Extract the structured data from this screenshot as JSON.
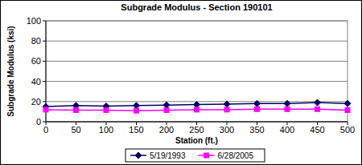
{
  "chart_data": {
    "type": "line",
    "title": "Subgrade Modulus  - Section 190101",
    "x_label": "Station (ft.)",
    "y_label": "Subgrade Modulus (ksi)",
    "x": [
      0,
      50,
      100,
      150,
      200,
      250,
      300,
      350,
      400,
      450,
      500
    ],
    "series": [
      {
        "name": "5/19/1993",
        "color": "#000066",
        "marker": "diamond",
        "values": [
          15,
          16,
          15.5,
          16,
          16.5,
          17,
          17.5,
          18,
          18,
          19,
          18
        ]
      },
      {
        "name": "6/28/2005",
        "color": "#ff00ff",
        "marker": "square",
        "values": [
          12,
          11.5,
          11.5,
          11,
          11.5,
          12,
          12,
          12.5,
          12.5,
          12.5,
          11.5
        ]
      }
    ],
    "xlim": [
      0,
      500
    ],
    "xticks": [
      0,
      50,
      100,
      150,
      200,
      250,
      300,
      350,
      400,
      450,
      500
    ],
    "ylim": [
      0,
      100
    ],
    "yticks": [
      0,
      20,
      40,
      60,
      80,
      100
    ],
    "grid": true,
    "legend": "bottom"
  }
}
